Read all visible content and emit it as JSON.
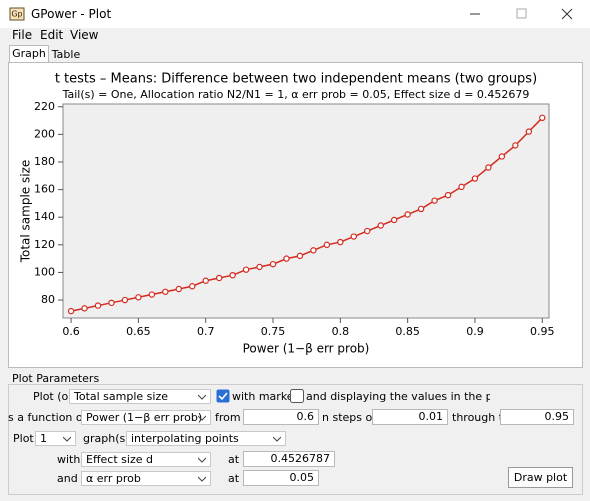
{
  "window": {
    "title": "GPower - Plot"
  },
  "menu": [
    "File",
    "Edit",
    "View"
  ],
  "tabs": [
    "Graph",
    "Table"
  ],
  "chart_data": {
    "type": "line",
    "title": "t tests – Means: Difference between two independent means (two groups)",
    "subtitle": "Tail(s) = One, Allocation ratio N2/N1 = 1, α err prob = 0.05, Effect size d = 0.452679",
    "x_label": "Power (1−β err prob)",
    "y_label": "Total sample size",
    "x": [
      0.6,
      0.61,
      0.62,
      0.63,
      0.64,
      0.65,
      0.66,
      0.67,
      0.68,
      0.69,
      0.7,
      0.71,
      0.72,
      0.73,
      0.74,
      0.75,
      0.76,
      0.77,
      0.78,
      0.79,
      0.8,
      0.81,
      0.82,
      0.83,
      0.84,
      0.85,
      0.86,
      0.87,
      0.88,
      0.89,
      0.9,
      0.91,
      0.92,
      0.93,
      0.94,
      0.95
    ],
    "values": [
      72,
      74,
      76,
      78,
      80,
      82,
      84,
      86,
      88,
      90,
      94,
      96,
      98,
      102,
      104,
      106,
      110,
      112,
      116,
      120,
      122,
      126,
      130,
      134,
      138,
      142,
      146,
      152,
      156,
      162,
      168,
      176,
      184,
      192,
      202,
      212
    ],
    "color": "#d42a20",
    "markers": true,
    "xlim": [
      0.594,
      0.955
    ],
    "ylim": [
      67,
      222
    ],
    "xticks": [
      0.6,
      0.65,
      0.7,
      0.75,
      0.8,
      0.85,
      0.9,
      0.95
    ],
    "yticks": [
      80,
      100,
      120,
      140,
      160,
      180,
      200,
      220
    ],
    "grid": false
  },
  "parameters": {
    "group_title": "Plot Parameters",
    "plot_on_y_label": "Plot (on y",
    "y_choice": "Total sample size",
    "with_markers": "with markers",
    "display_values": "and displaying the values in the plo",
    "function_of_label": "s a function of",
    "x_choice": "Power (1−β err prob)",
    "from_label": "from",
    "from_value": "0.6",
    "steps_label": "n steps of",
    "steps_value": "0.01",
    "through_label": "through to",
    "through_value": "0.95",
    "plot_label": "Plot",
    "graph_count": "1",
    "graphs_label": "graph(s)",
    "graph_mode": "interpolating points",
    "with_label": "with",
    "param1": "Effect size d",
    "at1_label": "at",
    "param1_value": "0.4526787",
    "and_label": "and",
    "param2": "α err prob",
    "at2_label": "at",
    "param2_value": "0.05",
    "draw_button": "Draw plot"
  }
}
